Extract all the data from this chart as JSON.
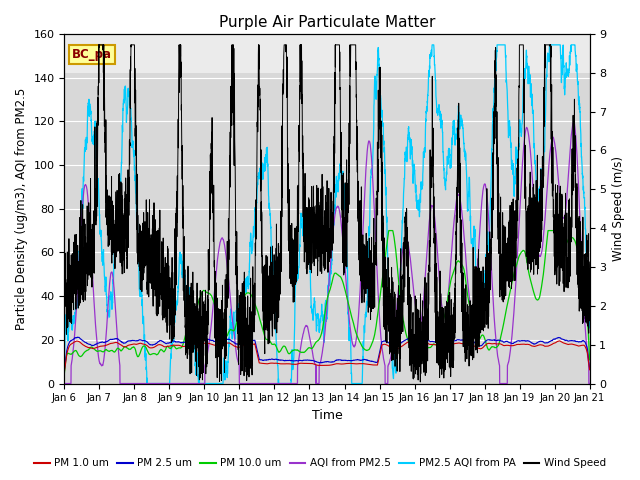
{
  "title": "Purple Air Particulate Matter",
  "xlabel": "Time",
  "ylabel_left": "Particle Density (ug/m3), AQI from PM2.5",
  "ylabel_right": "Wind Speed (m/s)",
  "annotation": "BC_pa",
  "ylim_left": [
    0,
    160
  ],
  "ylim_right": [
    0.0,
    9.0
  ],
  "yticks_left": [
    0,
    20,
    40,
    60,
    80,
    100,
    120,
    140,
    160
  ],
  "yticks_right": [
    0.0,
    1.0,
    2.0,
    3.0,
    4.0,
    5.0,
    6.0,
    7.0,
    8.0,
    9.0
  ],
  "xtick_labels": [
    "Jan 6",
    "Jan 7",
    "Jan 8",
    "Jan 9",
    "Jan 10",
    "Jan 11",
    "Jan 12",
    "Jan 13",
    "Jan 14",
    "Jan 15",
    "Jan 16",
    "Jan 17",
    "Jan 18",
    "Jan 19",
    "Jan 20",
    "Jan 21"
  ],
  "colors": {
    "pm1": "#cc0000",
    "pm25": "#0000cc",
    "pm10": "#00cc00",
    "aqi_pm25": "#9933cc",
    "aqi_pa": "#00ccff",
    "wind": "#000000"
  },
  "legend_labels": [
    "PM 1.0 um",
    "PM 2.5 um",
    "PM 10.0 um",
    "AQI from PM2.5",
    "PM2.5 AQI from PA",
    "Wind Speed"
  ],
  "bg_main": "#d8d8d8",
  "bg_light": "#ebebeb",
  "n_points": 3600,
  "seed": 42,
  "wind_scale": 17.78
}
